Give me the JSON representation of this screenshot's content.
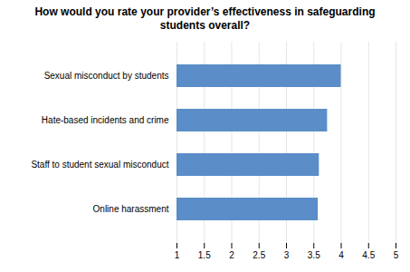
{
  "chart_data": {
    "type": "bar",
    "orientation": "horizontal",
    "title": "How would you rate your provider’s effectiveness in safeguarding\nstudents overall?",
    "categories": [
      "Online harassment",
      "Staff to student sexual misconduct",
      "Hate-based incidents and crime",
      "Sexual misconduct by students"
    ],
    "values": [
      3.58,
      3.6,
      3.75,
      4.0
    ],
    "color": "#5b8dc8",
    "xlim": [
      1,
      5
    ],
    "xticks": [
      1,
      1.5,
      2,
      2.5,
      3,
      3.5,
      4,
      4.5,
      5
    ],
    "grid": true
  }
}
